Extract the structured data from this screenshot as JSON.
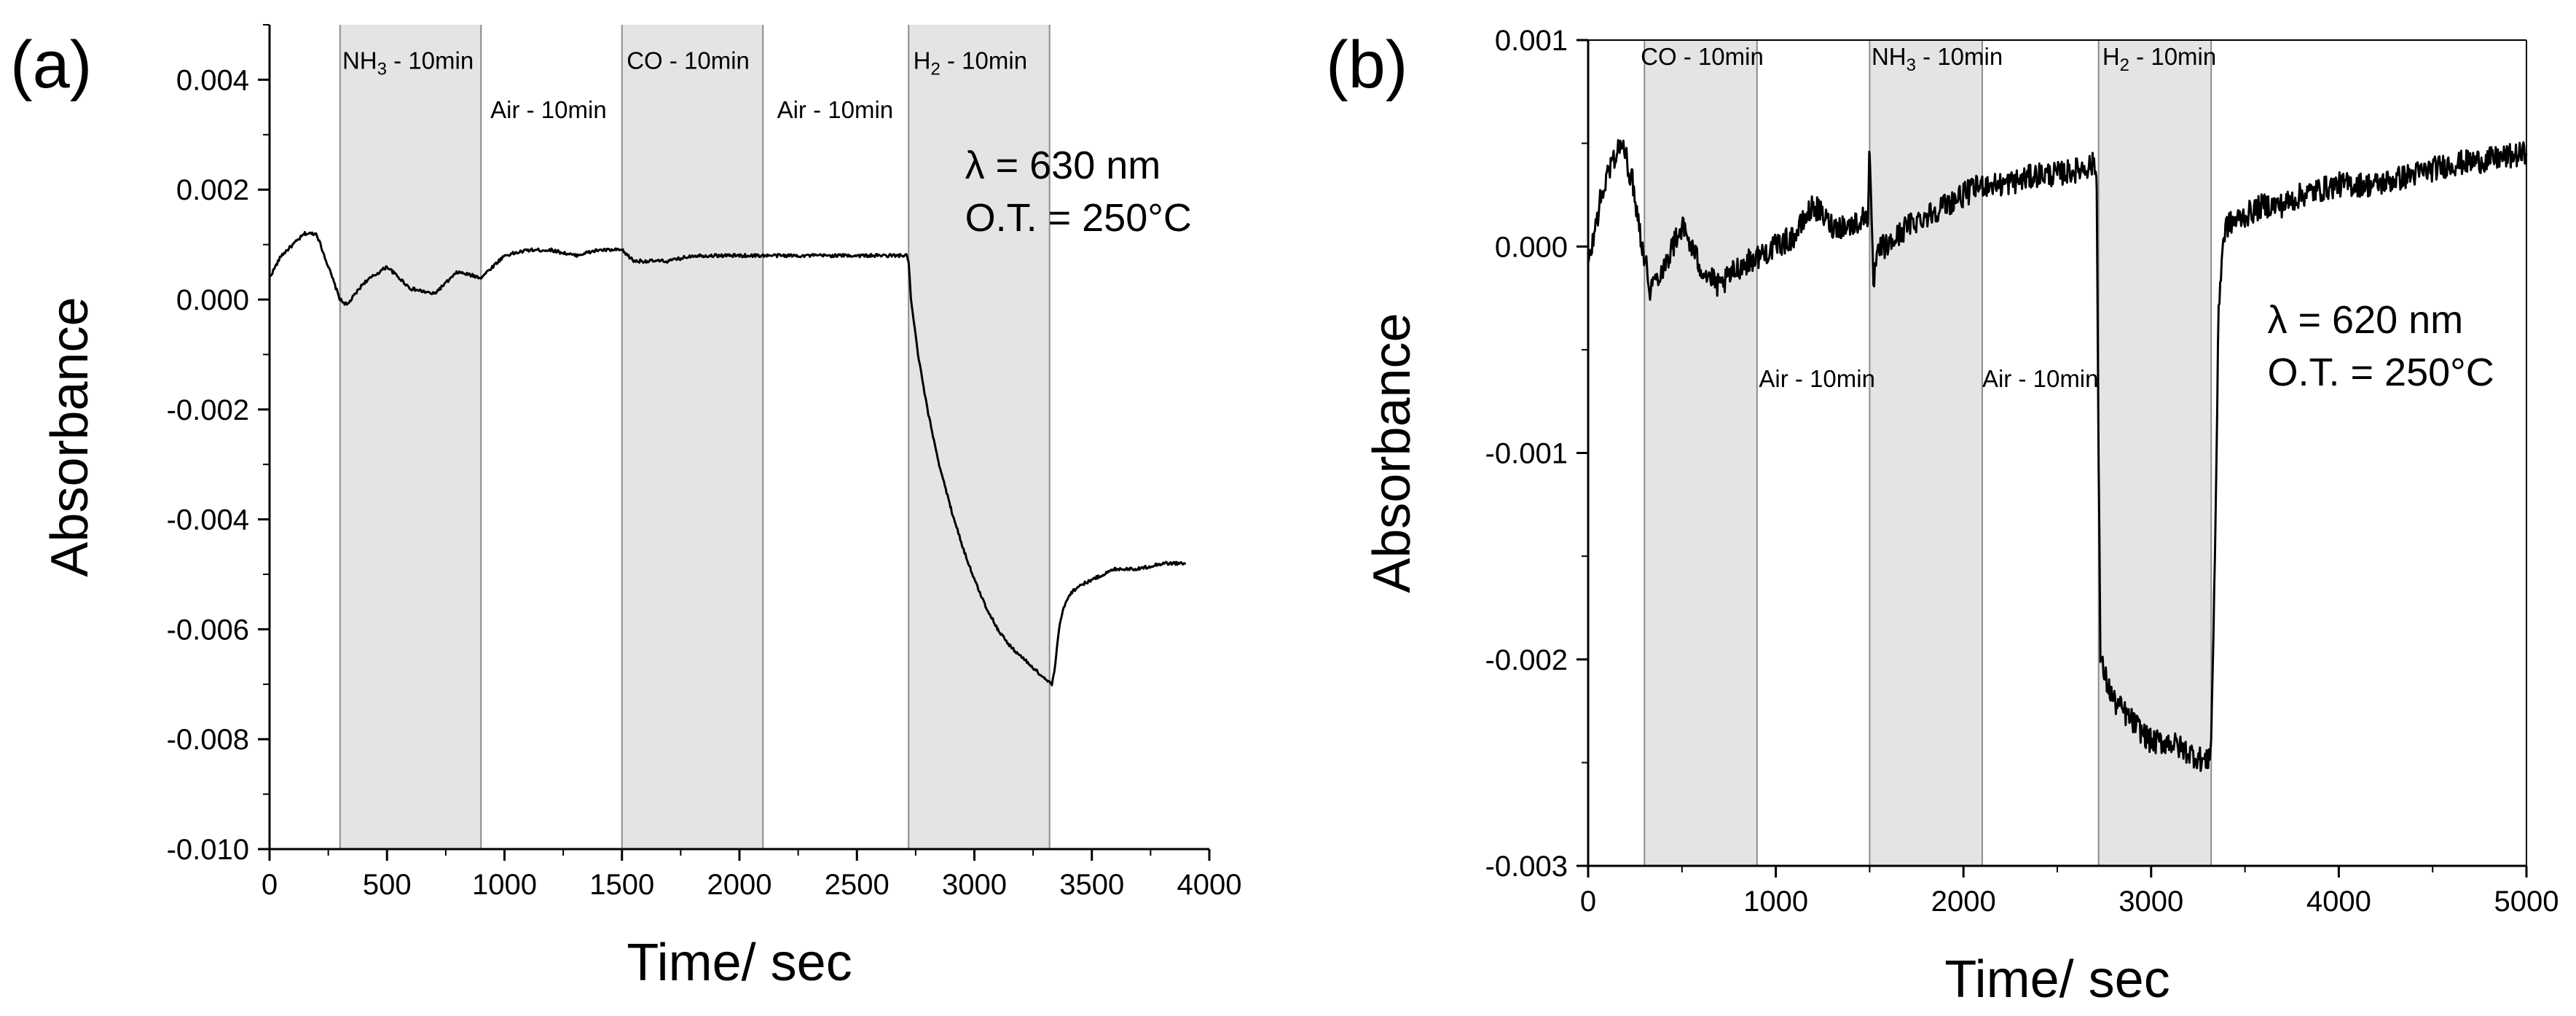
{
  "colors": {
    "shade": "#e4e4e4",
    "line": "#000000",
    "band_edge": "#8c8c8c"
  },
  "chart_data": [
    {
      "type": "line",
      "panel_label": "(a)",
      "xlabel": "Time/ sec",
      "ylabel": "Absorbance",
      "xlim": [
        0,
        4000
      ],
      "ylim": [
        -0.01,
        0.005
      ],
      "xticks": [
        0,
        500,
        1000,
        1500,
        2000,
        2500,
        3000,
        3500,
        4000
      ],
      "xtick_labels": [
        "0",
        "500",
        "1000",
        "1500",
        "2000",
        "2500",
        "3000",
        "3500",
        "4000"
      ],
      "yticks": [
        0.004,
        0.002,
        0.0,
        -0.002,
        -0.004,
        -0.006,
        -0.008,
        -0.01
      ],
      "ytick_labels": [
        "0.004",
        "0.002",
        "0.000",
        "-0.002",
        "-0.004",
        "-0.006",
        "-0.008",
        "-0.010"
      ],
      "shaded_intervals": [
        [
          300,
          900
        ],
        [
          1500,
          2100
        ],
        [
          2720,
          3320
        ]
      ],
      "gas_labels": [
        {
          "gas": "NH",
          "sub": "3",
          "suffix": " - 10min",
          "x": 310,
          "y": 0.0042,
          "pos": "top"
        },
        {
          "gas": "Air - 10min",
          "sub": "",
          "suffix": "",
          "x": 940,
          "y": 0.0033,
          "pos": "top"
        },
        {
          "gas": "CO - 10min",
          "sub": "",
          "suffix": "",
          "x": 1520,
          "y": 0.0042,
          "pos": "top"
        },
        {
          "gas": "Air - 10min",
          "sub": "",
          "suffix": "",
          "x": 2160,
          "y": 0.0033,
          "pos": "top"
        },
        {
          "gas": "H",
          "sub": "2",
          "suffix": " - 10min",
          "x": 2740,
          "y": 0.0042,
          "pos": "top"
        }
      ],
      "annotation": {
        "line1": "λ = 630 nm",
        "line2": "O.T. = 250°C",
        "x": 2960,
        "y": 0.0022
      },
      "series": [
        {
          "name": "absorbance",
          "noise": 3e-05,
          "x": [
            0,
            50,
            100,
            150,
            200,
            250,
            300,
            330,
            400,
            500,
            600,
            700,
            800,
            900,
            1000,
            1100,
            1200,
            1300,
            1400,
            1500,
            1550,
            1600,
            1700,
            1800,
            1900,
            2000,
            2100,
            2200,
            2300,
            2400,
            2500,
            2600,
            2700,
            2710,
            2720,
            2730,
            2760,
            2800,
            2850,
            2900,
            2950,
            3000,
            3050,
            3100,
            3150,
            3200,
            3250,
            3300,
            3330,
            3340,
            3360,
            3380,
            3400,
            3420,
            3450,
            3500,
            3550,
            3600,
            3700,
            3800,
            3900
          ],
          "y": [
            0.0004,
            0.0008,
            0.001,
            0.0012,
            0.0012,
            0.0006,
            0.0,
            -0.0001,
            0.0003,
            0.0006,
            0.0002,
            0.0001,
            0.0005,
            0.0004,
            0.0008,
            0.0009,
            0.0009,
            0.0008,
            0.0009,
            0.0009,
            0.0007,
            0.0007,
            0.0007,
            0.0008,
            0.0008,
            0.0008,
            0.0008,
            0.0008,
            0.0008,
            0.0008,
            0.0008,
            0.0008,
            0.0008,
            0.0008,
            0.0007,
            0.0,
            -0.001,
            -0.002,
            -0.003,
            -0.0038,
            -0.0045,
            -0.0051,
            -0.0056,
            -0.006,
            -0.0063,
            -0.0065,
            -0.0067,
            -0.0069,
            -0.007,
            -0.0068,
            -0.006,
            -0.0056,
            -0.0054,
            -0.0053,
            -0.0052,
            -0.0051,
            -0.005,
            -0.0049,
            -0.0049,
            -0.0048,
            -0.0048
          ]
        }
      ]
    },
    {
      "type": "line",
      "panel_label": "(b)",
      "xlabel": "Time/ sec",
      "ylabel": "Absorbance",
      "xlim": [
        0,
        5000
      ],
      "ylim": [
        -0.003,
        0.001
      ],
      "xticks": [
        0,
        1000,
        2000,
        3000,
        4000,
        5000
      ],
      "xtick_labels": [
        "0",
        "1000",
        "2000",
        "3000",
        "4000",
        "5000"
      ],
      "yticks": [
        0.001,
        0.0,
        -0.001,
        -0.002,
        -0.003
      ],
      "ytick_labels": [
        "0.001",
        "0.000",
        "-0.001",
        "-0.002",
        "-0.003"
      ],
      "shaded_intervals": [
        [
          300,
          900
        ],
        [
          1500,
          2100
        ],
        [
          2720,
          3320
        ]
      ],
      "gas_labels": [
        {
          "gas": "CO - 10min",
          "sub": "",
          "suffix": "",
          "x": 280,
          "y": 0.00088,
          "pos": "top"
        },
        {
          "gas": "NH",
          "sub": "3",
          "suffix": " - 10min",
          "x": 1510,
          "y": 0.00088,
          "pos": "top"
        },
        {
          "gas": "H",
          "sub": "2",
          "suffix": " - 10min",
          "x": 2740,
          "y": 0.00088,
          "pos": "top"
        },
        {
          "gas": "Air - 10min",
          "sub": "",
          "suffix": "",
          "x": 910,
          "y": -0.00068,
          "pos": "mid"
        },
        {
          "gas": "Air - 10min",
          "sub": "",
          "suffix": "",
          "x": 2100,
          "y": -0.00068,
          "pos": "mid"
        }
      ],
      "annotation": {
        "line1": "λ = 620 nm",
        "line2": "O.T. = 250°C",
        "x": 3620,
        "y": -0.00042
      },
      "series": [
        {
          "name": "absorbance",
          "noise": 6e-05,
          "x": [
            0,
            60,
            120,
            180,
            240,
            290,
            330,
            400,
            500,
            600,
            700,
            800,
            900,
            1000,
            1100,
            1200,
            1300,
            1400,
            1490,
            1500,
            1510,
            1520,
            1530,
            1560,
            1600,
            1700,
            1800,
            1900,
            2000,
            2100,
            2200,
            2300,
            2400,
            2500,
            2600,
            2700,
            2710,
            2720,
            2730,
            2760,
            2800,
            2900,
            3000,
            3100,
            3200,
            3300,
            3320,
            3340,
            3360,
            3380,
            3400,
            3500,
            3600,
            3700,
            3800,
            4000,
            4200,
            4400,
            4600,
            4800,
            5000
          ],
          "y": [
            -0.0001,
            0.0002,
            0.0004,
            0.0005,
            0.0003,
            0.0,
            -0.0002,
            -0.0001,
            0.0001,
            -0.0001,
            -0.0002,
            -0.0001,
            -5e-05,
            0.0,
            5e-05,
            0.0002,
            0.0001,
            0.0001,
            0.00015,
            0.0005,
            0.0001,
            -0.0002,
            -0.0001,
            0.0,
            0.0,
            0.0001,
            0.00015,
            0.0002,
            0.00025,
            0.0003,
            0.0003,
            0.00032,
            0.00035,
            0.00035,
            0.00037,
            0.0004,
            0.0003,
            -0.001,
            -0.002,
            -0.0021,
            -0.0022,
            -0.0023,
            -0.0024,
            -0.0024,
            -0.00245,
            -0.0025,
            -0.0024,
            -0.0015,
            -0.0003,
            0.0,
            0.0001,
            0.00015,
            0.0002,
            0.0002,
            0.00025,
            0.0003,
            0.0003,
            0.00035,
            0.0004,
            0.00042,
            0.00045
          ]
        }
      ]
    }
  ]
}
